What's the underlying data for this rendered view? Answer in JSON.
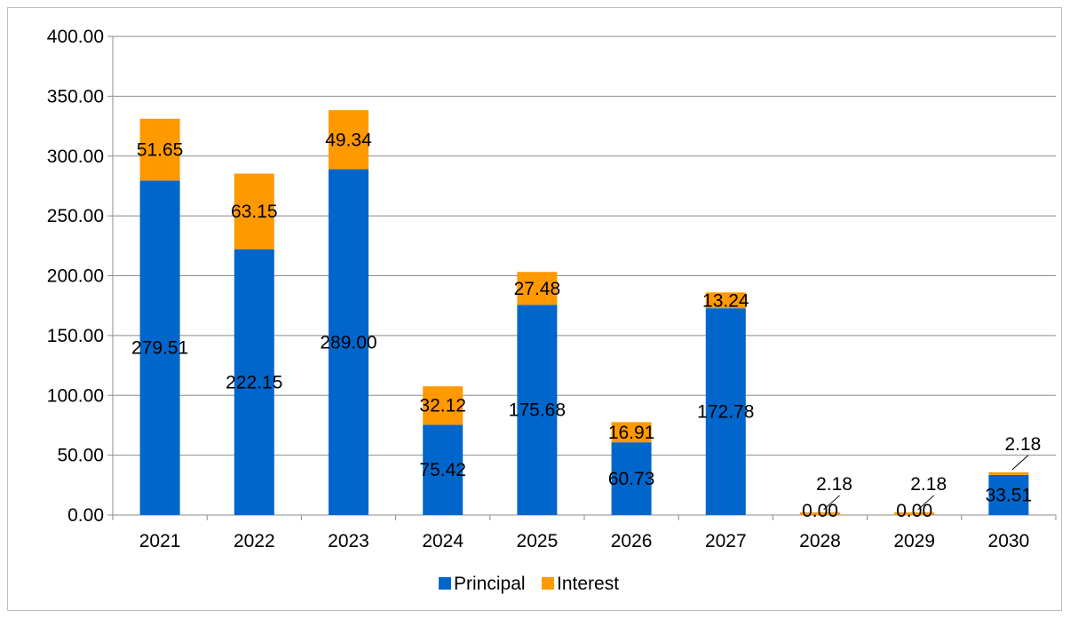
{
  "chart_data": {
    "type": "bar",
    "stacked": true,
    "categories": [
      "2021",
      "2022",
      "2023",
      "2024",
      "2025",
      "2026",
      "2027",
      "2028",
      "2029",
      "2030"
    ],
    "series": [
      {
        "name": "Principal",
        "color": "#0066cc",
        "values": [
          279.51,
          222.15,
          289.0,
          75.42,
          175.68,
          60.73,
          172.78,
          0.0,
          0.0,
          33.51
        ],
        "labels": [
          "279.51",
          "222.15",
          "289.00",
          "75.42",
          "175.68",
          "60.73",
          "172.78",
          "0.00",
          "0.00",
          "33.51"
        ]
      },
      {
        "name": "Interest",
        "color": "#ff9900",
        "values": [
          51.65,
          63.15,
          49.34,
          32.12,
          27.48,
          16.91,
          13.24,
          2.18,
          2.18,
          2.18
        ],
        "labels": [
          "51.65",
          "63.15",
          "49.34",
          "32.12",
          "27.48",
          "16.91",
          "13.24",
          "2.18",
          "2.18",
          "2.18"
        ]
      }
    ],
    "y_ticks": [
      "0.00",
      "50.00",
      "100.00",
      "150.00",
      "200.00",
      "250.00",
      "300.00",
      "350.00",
      "400.00"
    ],
    "ylim": [
      0,
      400
    ],
    "grid": true,
    "legend_position": "bottom"
  }
}
